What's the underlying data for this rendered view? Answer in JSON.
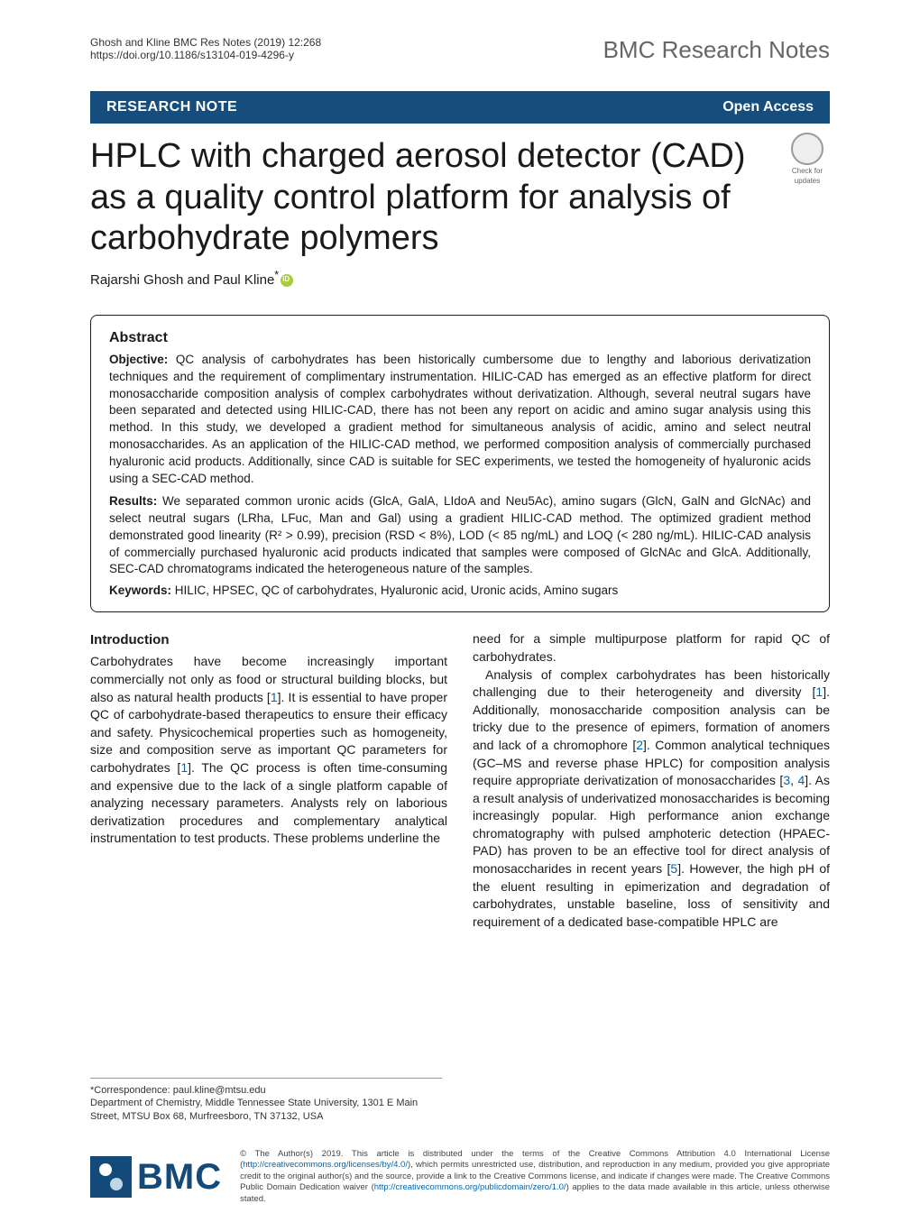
{
  "header": {
    "running_head_line1": "Ghosh and Kline BMC Res Notes   (2019) 12:268",
    "doi": "https://doi.org/10.1186/s13104-019-4296-y",
    "journal": "BMC Research Notes"
  },
  "banner": {
    "category": "RESEARCH NOTE",
    "open_access": "Open Access"
  },
  "crossmark": {
    "line1": "Check for",
    "line2": "updates"
  },
  "article": {
    "title": "HPLC with charged aerosol detector (CAD) as a quality control platform for analysis of carbohydrate polymers",
    "authors": "Rajarshi Ghosh and Paul Kline"
  },
  "abstract": {
    "heading": "Abstract",
    "objective_label": "Objective:",
    "objective_text": " QC analysis of carbohydrates has been historically cumbersome due to lengthy and laborious derivatization techniques and the requirement of complimentary instrumentation. HILIC-CAD has emerged as an effective platform for direct monosaccharide composition analysis of complex carbohydrates without derivatization. Although, several neutral sugars have been separated and detected using HILIC-CAD, there has not been any report on acidic and amino sugar analysis using this method. In this study, we developed a gradient method for simultaneous analysis of acidic, amino and select neutral monosaccharides. As an application of the HILIC-CAD method, we performed composition analysis of commercially purchased hyaluronic acid products. Additionally, since CAD is suitable for SEC experiments, we tested the homogeneity of hyaluronic acids using a SEC-CAD method.",
    "results_label": "Results:",
    "results_text": " We separated common uronic acids (GlcA, GalA, LIdoA and Neu5Ac), amino sugars (GlcN, GalN and GlcNAc) and select neutral sugars (LRha, LFuc, Man and Gal) using a gradient HILIC-CAD method. The optimized gradient method demonstrated good linearity (R² > 0.99), precision (RSD < 8%), LOD (< 85 ng/mL) and LOQ (< 280 ng/mL). HILIC-CAD analysis of commercially purchased hyaluronic acid products indicated that samples were composed of GlcNAc and GlcA. Additionally, SEC-CAD chromatograms indicated the heterogeneous nature of the samples.",
    "keywords_label": "Keywords:",
    "keywords_text": " HILIC, HPSEC, QC of carbohydrates, Hyaluronic acid, Uronic acids, Amino sugars"
  },
  "introduction": {
    "heading": "Introduction",
    "col1_p1a": "Carbohydrates have become increasingly important commercially not only as food or structural building blocks, but also as natural health products [",
    "ref1": "1",
    "col1_p1b": "]. It is essential to have proper QC of carbohydrate-based therapeutics to ensure their efficacy and safety. Physicochemical properties such as homogeneity, size and composition serve as important QC parameters for carbohydrates [",
    "col1_p1c": "]. The QC process is often time-consuming and expensive due to the lack of a single platform capable of analyzing necessary parameters. Analysts rely on laborious derivatization procedures and complementary analytical instrumentation to test products. These problems underline the",
    "col2_p1": "need for a simple multipurpose platform for rapid QC of carbohydrates.",
    "col2_p2a": "Analysis of complex carbohydrates has been historically challenging due to their heterogeneity and diversity [",
    "col2_p2b": "]. Additionally, monosaccharide composition analysis can be tricky due to the presence of epimers, formation of anomers and lack of a chromophore [",
    "ref2": "2",
    "col2_p2c": "]. Common analytical techniques (GC–MS and reverse phase HPLC) for composition analysis require appropriate derivatization of monosaccharides [",
    "ref3": "3",
    "ref4": "4",
    "col2_p2d": "]. As a result analysis of underivatized monosaccharides is becoming increasingly popular. High performance anion exchange chromatography with pulsed amphoteric detection (HPAEC-PAD) has proven to be an effective tool for direct analysis of monosaccharides in recent years [",
    "ref5": "5",
    "col2_p2e": "]. However, the high pH of the eluent resulting in epimerization and degradation of carbohydrates, unstable baseline, loss of sensitivity and requirement of a dedicated base-compatible HPLC are"
  },
  "correspondence": {
    "line1": "*Correspondence: paul.kline@mtsu.edu",
    "line2": "Department of Chemistry, Middle Tennessee State University, 1301 E Main Street, MTSU Box 68, Murfreesboro, TN 37132, USA"
  },
  "footer": {
    "bmc": "BMC",
    "license_a": "© The Author(s) 2019. This article is distributed under the terms of the Creative Commons Attribution 4.0 International License (",
    "license_url1": "http://creativecommons.org/licenses/by/4.0/",
    "license_b": "), which permits unrestricted use, distribution, and reproduction in any medium, provided you give appropriate credit to the original author(s) and the source, provide a link to the Creative Commons license, and indicate if changes were made. The Creative Commons Public Domain Dedication waiver (",
    "license_url2": "http://creativecommons.org/publicdomain/zero/1.0/",
    "license_c": ") applies to the data made available in this article, unless otherwise stated."
  },
  "colors": {
    "banner_bg": "#154e7d",
    "link": "#0066b3",
    "orcid": "#a6ce39"
  }
}
